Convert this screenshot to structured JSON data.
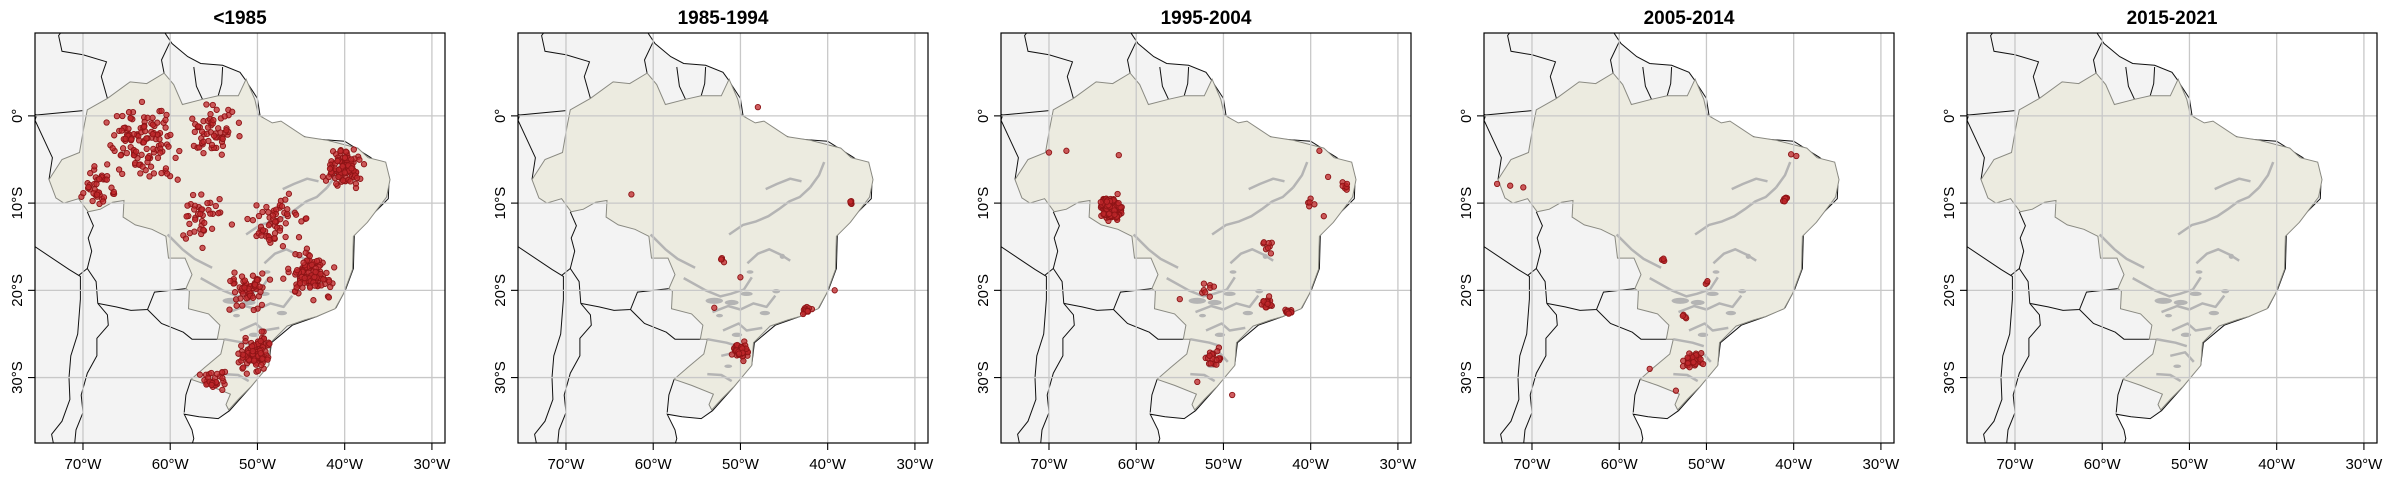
{
  "figure": {
    "colors": {
      "background_land": "#f3f3f3",
      "brazil_fill": "#ecebe0",
      "river": "#b4b4b4",
      "point_fill": "#c0282c",
      "point_stroke": "#8e1416",
      "grid": "#c8c8c8"
    },
    "icon": "map-of-brazil",
    "panels": [
      {
        "title": "<1985"
      },
      {
        "title": "1985-1994"
      },
      {
        "title": "1995-2004"
      },
      {
        "title": "2005-2014"
      },
      {
        "title": "2015-2021"
      }
    ],
    "axes": {
      "x_ticks": [
        "70°W",
        "60°W",
        "50°W",
        "40°W",
        "30°W"
      ],
      "y_ticks": [
        "0°",
        "10°S",
        "20°S",
        "30°S"
      ],
      "lon_values": [
        -70,
        -60,
        -50,
        -40,
        -30
      ],
      "lat_values": [
        0,
        -10,
        -20,
        -30
      ],
      "lon_range": [
        -75.5,
        -28.5
      ],
      "lat_range": [
        -37.5,
        9.5
      ]
    }
  },
  "chart_data": {
    "type": "scatter",
    "x_unit": "longitude (°)",
    "y_unit": "latitude (°)",
    "panels": [
      {
        "panel": "<1985",
        "clusters": [
          {
            "lon": -63,
            "lat": -3,
            "n": 120,
            "spread": 6
          },
          {
            "lon": -55,
            "lat": -2,
            "n": 60,
            "spread": 4
          },
          {
            "lon": -68,
            "lat": -8,
            "n": 40,
            "spread": 3
          },
          {
            "lon": -48,
            "lat": -12,
            "n": 60,
            "spread": 4
          },
          {
            "lon": -40,
            "lat": -6,
            "n": 110,
            "spread": 3
          },
          {
            "lon": -44,
            "lat": -18,
            "n": 110,
            "spread": 3.5
          },
          {
            "lon": -51,
            "lat": -20,
            "n": 60,
            "spread": 3
          },
          {
            "lon": -50,
            "lat": -27,
            "n": 110,
            "spread": 3
          },
          {
            "lon": -55,
            "lat": -30,
            "n": 30,
            "spread": 2
          },
          {
            "lon": -56,
            "lat": -12,
            "n": 40,
            "spread": 4
          }
        ]
      },
      {
        "panel": "1985-1994",
        "clusters": [
          {
            "lon": -50,
            "lat": -27,
            "n": 70,
            "spread": 1.2
          },
          {
            "lon": -42.5,
            "lat": -22.3,
            "n": 12,
            "spread": 0.8
          },
          {
            "lon": -37.5,
            "lat": -10,
            "n": 4,
            "spread": 0.5
          },
          {
            "lon": -52,
            "lat": -16.5,
            "n": 4,
            "spread": 0.5
          }
        ],
        "points": [
          [
            -62.5,
            -9
          ],
          [
            -48,
            1
          ],
          [
            -50,
            -18.5
          ],
          [
            -53,
            -22
          ],
          [
            -39.2,
            -20
          ]
        ]
      },
      {
        "panel": "1995-2004",
        "clusters": [
          {
            "lon": -63,
            "lat": -10.5,
            "n": 160,
            "spread": 1.7
          },
          {
            "lon": -45,
            "lat": -21.5,
            "n": 20,
            "spread": 0.9
          },
          {
            "lon": -42.5,
            "lat": -22.5,
            "n": 15,
            "spread": 0.7
          },
          {
            "lon": -51,
            "lat": -28,
            "n": 20,
            "spread": 1.8
          },
          {
            "lon": -36,
            "lat": -8,
            "n": 8,
            "spread": 0.8
          },
          {
            "lon": -45,
            "lat": -15,
            "n": 8,
            "spread": 1.2
          },
          {
            "lon": -52,
            "lat": -19.5,
            "n": 8,
            "spread": 1.5
          },
          {
            "lon": -40,
            "lat": -10,
            "n": 5,
            "spread": 0.8
          }
        ],
        "points": [
          [
            -70,
            -4.2
          ],
          [
            -68,
            -4
          ],
          [
            -62,
            -4.5
          ],
          [
            -39,
            -4
          ],
          [
            -38,
            -7
          ],
          [
            -38.5,
            -11.5
          ],
          [
            -53,
            -30.5
          ],
          [
            -49,
            -32
          ],
          [
            -55,
            -21
          ]
        ]
      },
      {
        "panel": "2005-2014",
        "clusters": [
          {
            "lon": -51.5,
            "lat": -28,
            "n": 40,
            "spread": 1.5
          },
          {
            "lon": -41,
            "lat": -9.5,
            "n": 8,
            "spread": 0.4
          },
          {
            "lon": -52.5,
            "lat": -23,
            "n": 4,
            "spread": 0.3
          },
          {
            "lon": -55,
            "lat": -16.5,
            "n": 4,
            "spread": 0.3
          },
          {
            "lon": -50,
            "lat": -19.2,
            "n": 3,
            "spread": 0.3
          }
        ],
        "points": [
          [
            -74,
            -7.8
          ],
          [
            -72.5,
            -8
          ],
          [
            -71,
            -8.2
          ],
          [
            -39.7,
            -4.6
          ],
          [
            -40.3,
            -4.4
          ],
          [
            -56.5,
            -29
          ],
          [
            -53.5,
            -31.5
          ]
        ]
      },
      {
        "panel": "2015-2021",
        "clusters": [],
        "points": []
      }
    ]
  }
}
